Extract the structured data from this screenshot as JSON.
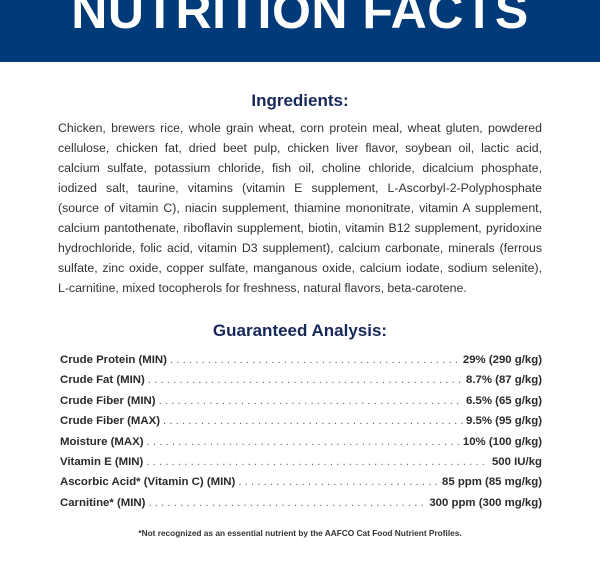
{
  "title": "NUTRITION FACTS",
  "colors": {
    "banner": "#013a78",
    "heading": "#16275a"
  },
  "ingredients": {
    "heading": "Ingredients:",
    "text": "Chicken, brewers rice, whole grain wheat, corn protein meal, wheat gluten, powdered cellulose, chicken fat, dried beet pulp, chicken liver flavor, soybean oil, lactic acid, calcium sulfate, potassium chloride, fish oil, choline chloride, dicalcium phosphate, iodized salt, taurine, vitamins (vitamin E supplement, L-Ascorbyl-2-Polyphosphate (source of vitamin C), niacin supplement, thiamine mononitrate, vitamin A supplement, calcium pantothenate, riboflavin supplement, biotin, vitamin B12 supplement, pyridoxine hydrochloride, folic acid, vitamin D3 supplement), calcium carbonate, minerals (ferrous sulfate, zinc oxide, copper sulfate, manganous oxide, calcium iodate, sodium selenite), L-carnitine, mixed tocopherols for freshness, natural flavors, beta-carotene."
  },
  "analysis": {
    "heading": "Guaranteed Analysis:",
    "rows": [
      {
        "label": "Crude Protein (MIN)",
        "value": "29% (290 g/kg)"
      },
      {
        "label": "Crude Fat (MIN)",
        "value": "8.7% (87 g/kg)"
      },
      {
        "label": "Crude Fiber (MIN)",
        "value": "6.5% (65 g/kg)"
      },
      {
        "label": "Crude Fiber (MAX)",
        "value": "9.5% (95 g/kg)"
      },
      {
        "label": "Moisture (MAX)",
        "value": "10% (100 g/kg)"
      },
      {
        "label": "Vitamin E (MIN)",
        "value": "500 IU/kg"
      },
      {
        "label": "Ascorbic Acid* (Vitamin C) (MIN)",
        "value": "85 ppm (85 mg/kg)"
      },
      {
        "label": "Carnitine* (MIN)",
        "value": "300 ppm (300 mg/kg)"
      }
    ],
    "footnote": "*Not recognized as an essential nutrient by the AAFCO Cat Food Nutrient Profiles."
  }
}
